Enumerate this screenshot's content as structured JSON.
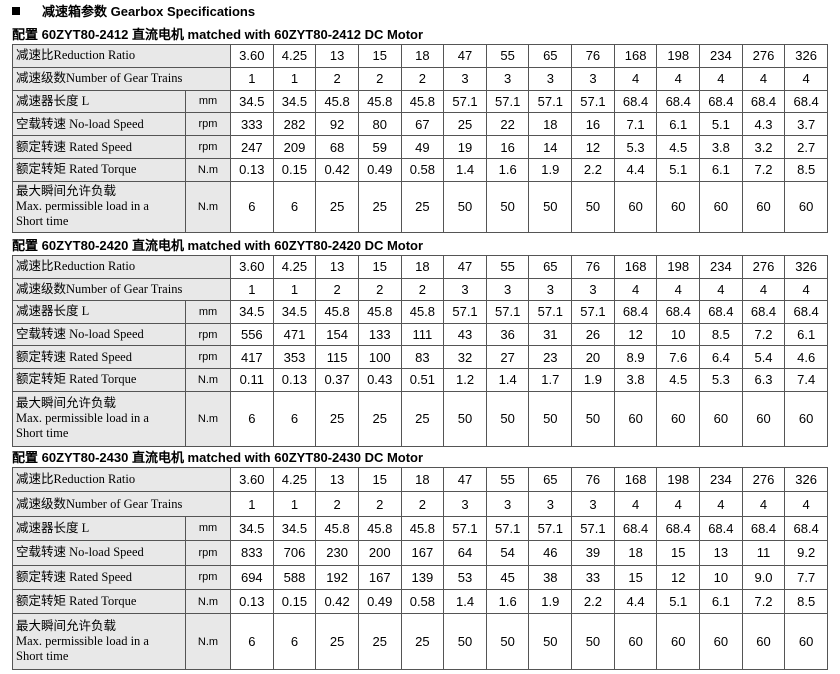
{
  "header": {
    "title": "减速箱参数 Gearbox Specifications"
  },
  "sections": [
    {
      "title": "配置 60ZYT80-2412 直流电机  matched with 60ZYT80-2412 DC Motor",
      "rows": [
        {
          "label": [
            "减速比Reduction Ratio"
          ],
          "values": [
            "3.60",
            "4.25",
            "13",
            "15",
            "18",
            "47",
            "55",
            "65",
            "76",
            "168",
            "198",
            "234",
            "276",
            "326"
          ]
        },
        {
          "label": [
            "减速级数Number of Gear Trains"
          ],
          "values": [
            "1",
            "1",
            "2",
            "2",
            "2",
            "3",
            "3",
            "3",
            "3",
            "4",
            "4",
            "4",
            "4",
            "4"
          ]
        },
        {
          "label": [
            "减速器长度 L"
          ],
          "unit": "mm",
          "values": [
            "34.5",
            "34.5",
            "45.8",
            "45.8",
            "45.8",
            "57.1",
            "57.1",
            "57.1",
            "57.1",
            "68.4",
            "68.4",
            "68.4",
            "68.4",
            "68.4"
          ]
        },
        {
          "label": [
            "空载转速 No-load Speed"
          ],
          "unit": "rpm",
          "values": [
            "333",
            "282",
            "92",
            "80",
            "67",
            "25",
            "22",
            "18",
            "16",
            "7.1",
            "6.1",
            "5.1",
            "4.3",
            "3.7"
          ]
        },
        {
          "label": [
            "额定转速 Rated Speed"
          ],
          "unit": "rpm",
          "values": [
            "247",
            "209",
            "68",
            "59",
            "49",
            "19",
            "16",
            "14",
            "12",
            "5.3",
            "4.5",
            "3.8",
            "3.2",
            "2.7"
          ]
        },
        {
          "label": [
            "额定转矩 Rated Torque"
          ],
          "unit": "N.m",
          "values": [
            "0.13",
            "0.15",
            "0.42",
            "0.49",
            "0.58",
            "1.4",
            "1.6",
            "1.9",
            "2.2",
            "4.4",
            "5.1",
            "6.1",
            "7.2",
            "8.5"
          ]
        },
        {
          "label": [
            "最大瞬间允许负载",
            "Max. permissible load in a",
            "Short time"
          ],
          "unit": "N.m",
          "values": [
            "6",
            "6",
            "25",
            "25",
            "25",
            "50",
            "50",
            "50",
            "50",
            "60",
            "60",
            "60",
            "60",
            "60"
          ]
        }
      ]
    },
    {
      "title": "配置 60ZYT80-2420 直流电机  matched with 60ZYT80-2420 DC Motor",
      "rows": [
        {
          "label": [
            "减速比Reduction Ratio"
          ],
          "values": [
            "3.60",
            "4.25",
            "13",
            "15",
            "18",
            "47",
            "55",
            "65",
            "76",
            "168",
            "198",
            "234",
            "276",
            "326"
          ]
        },
        {
          "label": [
            "减速级数Number of Gear Trains"
          ],
          "values": [
            "1",
            "1",
            "2",
            "2",
            "2",
            "3",
            "3",
            "3",
            "3",
            "4",
            "4",
            "4",
            "4",
            "4"
          ]
        },
        {
          "label": [
            "减速器长度 L"
          ],
          "unit": "mm",
          "values": [
            "34.5",
            "34.5",
            "45.8",
            "45.8",
            "45.8",
            "57.1",
            "57.1",
            "57.1",
            "57.1",
            "68.4",
            "68.4",
            "68.4",
            "68.4",
            "68.4"
          ]
        },
        {
          "label": [
            "空载转速 No-load Speed"
          ],
          "unit": "rpm",
          "values": [
            "556",
            "471",
            "154",
            "133",
            "111",
            "43",
            "36",
            "31",
            "26",
            "12",
            "10",
            "8.5",
            "7.2",
            "6.1"
          ]
        },
        {
          "label": [
            "额定转速 Rated Speed"
          ],
          "unit": "rpm",
          "values": [
            "417",
            "353",
            "115",
            "100",
            "83",
            "32",
            "27",
            "23",
            "20",
            "8.9",
            "7.6",
            "6.4",
            "5.4",
            "4.6"
          ]
        },
        {
          "label": [
            "额定转矩 Rated Torque"
          ],
          "unit": "N.m",
          "values": [
            "0.11",
            "0.13",
            "0.37",
            "0.43",
            "0.51",
            "1.2",
            "1.4",
            "1.7",
            "1.9",
            "3.8",
            "4.5",
            "5.3",
            "6.3",
            "7.4"
          ]
        },
        {
          "label": [
            "最大瞬间允许负载",
            "Max. permissible load in a",
            "Short time"
          ],
          "unit": "N.m",
          "values": [
            "6",
            "6",
            "25",
            "25",
            "25",
            "50",
            "50",
            "50",
            "50",
            "60",
            "60",
            "60",
            "60",
            "60"
          ]
        }
      ]
    },
    {
      "title": "配置 60ZYT80-2430 直流电机  matched with 60ZYT80-2430 DC Motor",
      "rows": [
        {
          "label": [
            "减速比Reduction Ratio"
          ],
          "values": [
            "3.60",
            "4.25",
            "13",
            "15",
            "18",
            "47",
            "55",
            "65",
            "76",
            "168",
            "198",
            "234",
            "276",
            "326"
          ]
        },
        {
          "label": [
            "减速级数Number of Gear Trains"
          ],
          "values": [
            "1",
            "1",
            "2",
            "2",
            "2",
            "3",
            "3",
            "3",
            "3",
            "4",
            "4",
            "4",
            "4",
            "4"
          ]
        },
        {
          "label": [
            "减速器长度 L"
          ],
          "unit": "mm",
          "values": [
            "34.5",
            "34.5",
            "45.8",
            "45.8",
            "45.8",
            "57.1",
            "57.1",
            "57.1",
            "57.1",
            "68.4",
            "68.4",
            "68.4",
            "68.4",
            "68.4"
          ]
        },
        {
          "label": [
            "空载转速 No-load Speed"
          ],
          "unit": "rpm",
          "values": [
            "833",
            "706",
            "230",
            "200",
            "167",
            "64",
            "54",
            "46",
            "39",
            "18",
            "15",
            "13",
            "11",
            "9.2"
          ]
        },
        {
          "label": [
            "额定转速 Rated Speed"
          ],
          "unit": "rpm",
          "values": [
            "694",
            "588",
            "192",
            "167",
            "139",
            "53",
            "45",
            "38",
            "33",
            "15",
            "12",
            "10",
            "9.0",
            "7.7"
          ]
        },
        {
          "label": [
            "额定转矩 Rated Torque"
          ],
          "unit": "N.m",
          "values": [
            "0.13",
            "0.15",
            "0.42",
            "0.49",
            "0.58",
            "1.4",
            "1.6",
            "1.9",
            "2.2",
            "4.4",
            "5.1",
            "6.1",
            "7.2",
            "8.5"
          ]
        },
        {
          "label": [
            "最大瞬间允许负载",
            "Max. permissible load in a",
            "Short time"
          ],
          "unit": "N.m",
          "values": [
            "6",
            "6",
            "25",
            "25",
            "25",
            "50",
            "50",
            "50",
            "50",
            "60",
            "60",
            "60",
            "60",
            "60"
          ]
        }
      ]
    }
  ]
}
